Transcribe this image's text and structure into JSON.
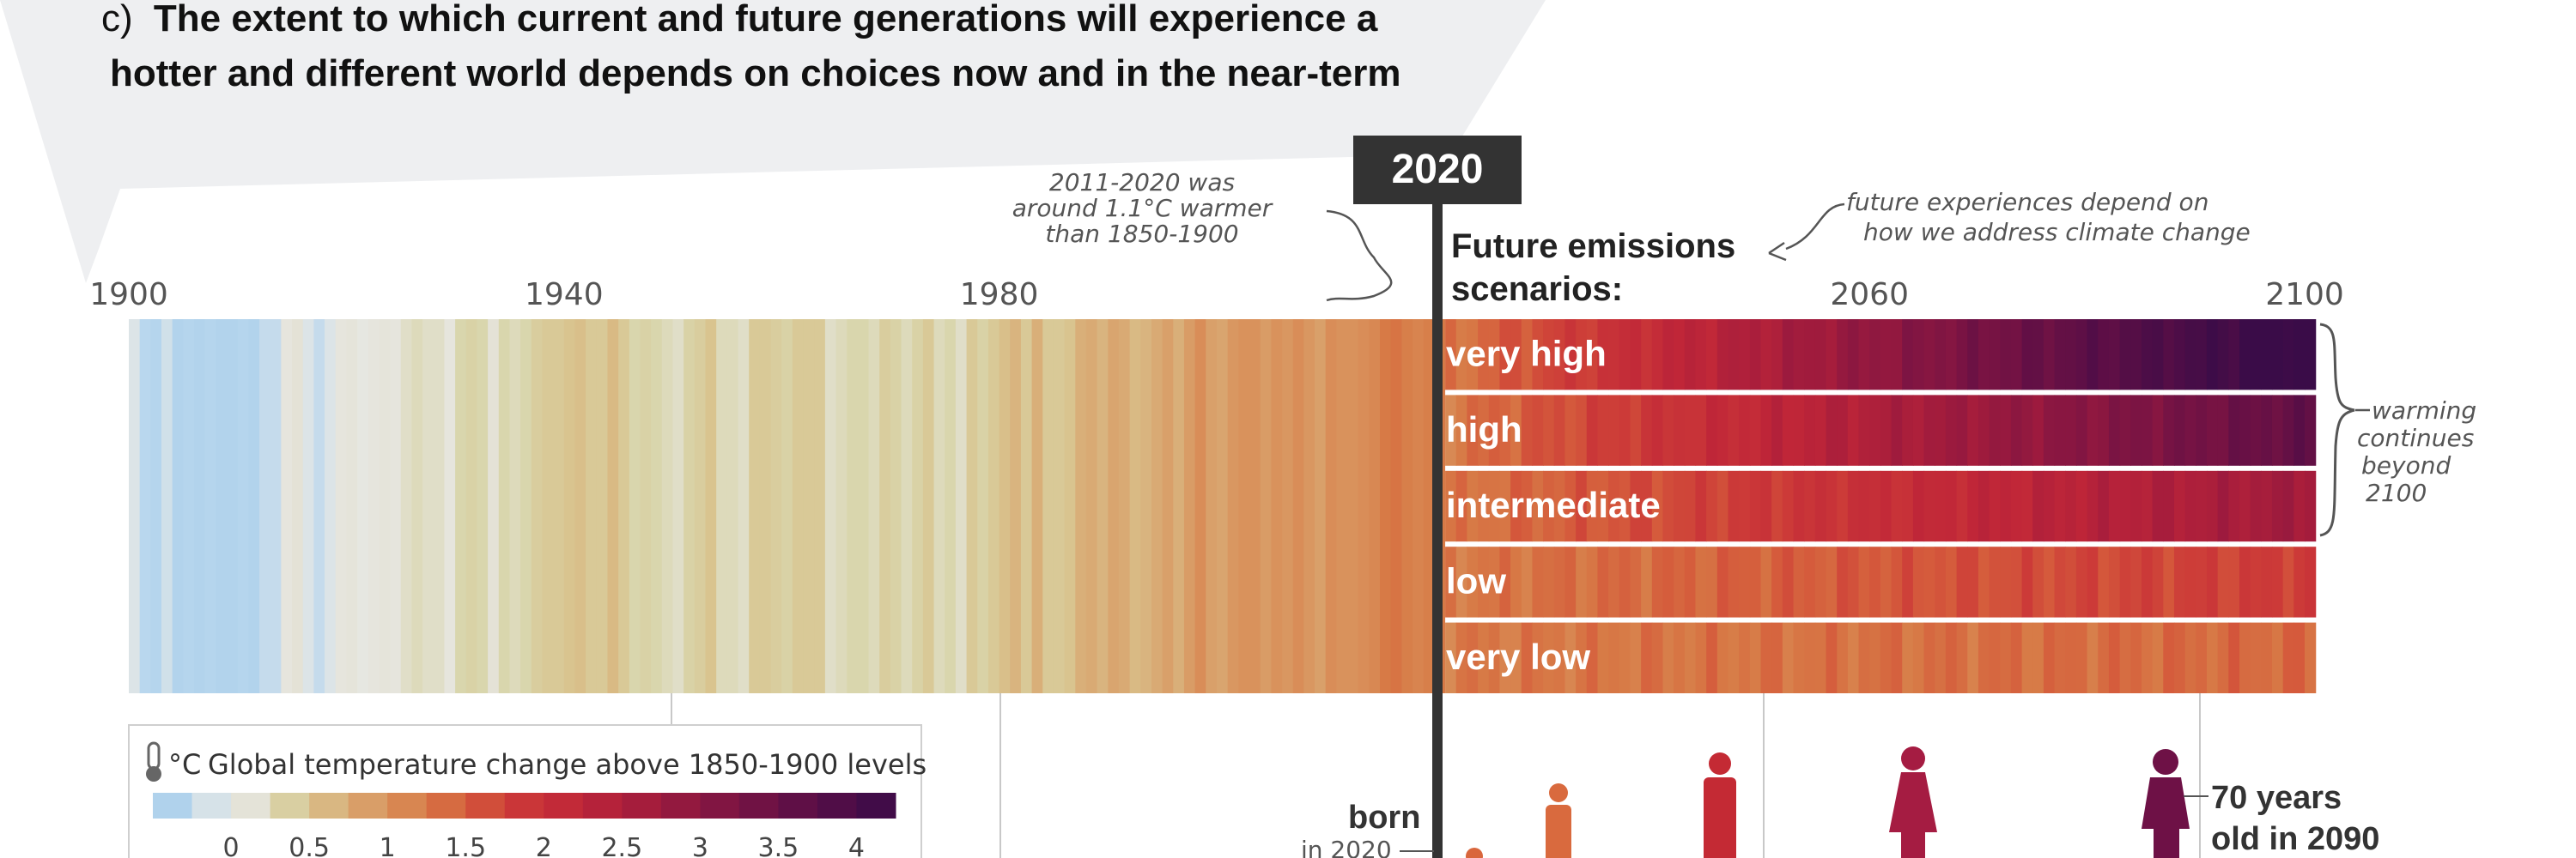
{
  "header": {
    "panel_letter": "c)",
    "title_line1": "The extent to which current and future generations will experience a",
    "title_line2": "hotter and different world depends on choices now and in the near-term"
  },
  "annotations": {
    "year_now": "2020",
    "past_note": [
      "2011-2020 was",
      "around 1.1°C warmer",
      "than 1850-1900"
    ],
    "future_note": [
      "future experiences depend on",
      "how we address climate change"
    ],
    "future_heading": [
      "Future emissions",
      "scenarios:"
    ],
    "beyond_note": [
      "warming",
      "continues",
      "beyond",
      "2100"
    ],
    "born_label": [
      "born",
      "in 2020"
    ],
    "age_label": [
      "70 years",
      "old in 2090"
    ]
  },
  "legend": {
    "unit": "°C",
    "title": "Global temperature change above 1850-1900 levels",
    "icon": "thermometer-icon"
  },
  "colors": {
    "cool_blue": "#a7cdea",
    "neutral": "#e5e6e1",
    "warm_tan": "#d9c48f",
    "orange": "#d97b45",
    "red": "#c8283a",
    "dark_purple": "#3a0c48"
  },
  "chart_data": {
    "type": "heatmap",
    "x_axis": {
      "range": [
        1900,
        2100
      ],
      "ticks": [
        "1900",
        "1940",
        "1980",
        "2060",
        "2100"
      ]
    },
    "color_scale": {
      "range": [
        -0.5,
        4.25
      ],
      "tick_labels": [
        "0",
        "0.5",
        "1",
        "1.5",
        "2",
        "2.5",
        "3",
        "3.5",
        "4"
      ]
    },
    "observed": {
      "years": [
        1900,
        2020
      ],
      "anomalies_c": [
        -0.1,
        -0.25,
        -0.3,
        -0.15,
        -0.35,
        -0.3,
        -0.35,
        -0.3,
        -0.35,
        -0.35,
        -0.3,
        -0.35,
        -0.2,
        -0.2,
        0.05,
        0.15,
        -0.1,
        -0.2,
        -0.1,
        0.05,
        0.1,
        0.0,
        0.05,
        0.1,
        0.05,
        0.2,
        0.25,
        0.2,
        0.2,
        0.05,
        0.3,
        0.35,
        0.3,
        0.15,
        0.3,
        0.25,
        0.3,
        0.4,
        0.45,
        0.45,
        0.5,
        0.55,
        0.45,
        0.45,
        0.6,
        0.45,
        0.3,
        0.35,
        0.3,
        0.25,
        0.2,
        0.35,
        0.4,
        0.5,
        0.25,
        0.25,
        0.2,
        0.45,
        0.45,
        0.4,
        0.35,
        0.45,
        0.45,
        0.45,
        0.2,
        0.25,
        0.3,
        0.3,
        0.25,
        0.4,
        0.35,
        0.25,
        0.35,
        0.45,
        0.25,
        0.3,
        0.2,
        0.45,
        0.35,
        0.45,
        0.55,
        0.65,
        0.45,
        0.7,
        0.45,
        0.45,
        0.5,
        0.7,
        0.75,
        0.65,
        0.8,
        0.75,
        0.6,
        0.65,
        0.75,
        0.85,
        0.7,
        0.9,
        1.05,
        0.85,
        0.8,
        0.95,
        1.0,
        1.0,
        0.9,
        1.0,
        0.95,
        1.05,
        0.95,
        0.85,
        1.05,
        1.0,
        1.0,
        1.05,
        1.1,
        1.25,
        1.3,
        1.2,
        1.15,
        1.2,
        1.25
      ]
    },
    "scenarios": [
      {
        "name": "very high",
        "end_c": 4.4
      },
      {
        "name": "high",
        "end_c": 3.6
      },
      {
        "name": "intermediate",
        "end_c": 2.7
      },
      {
        "name": "low",
        "end_c": 1.8
      },
      {
        "name": "very low",
        "end_c": 1.4
      }
    ]
  }
}
